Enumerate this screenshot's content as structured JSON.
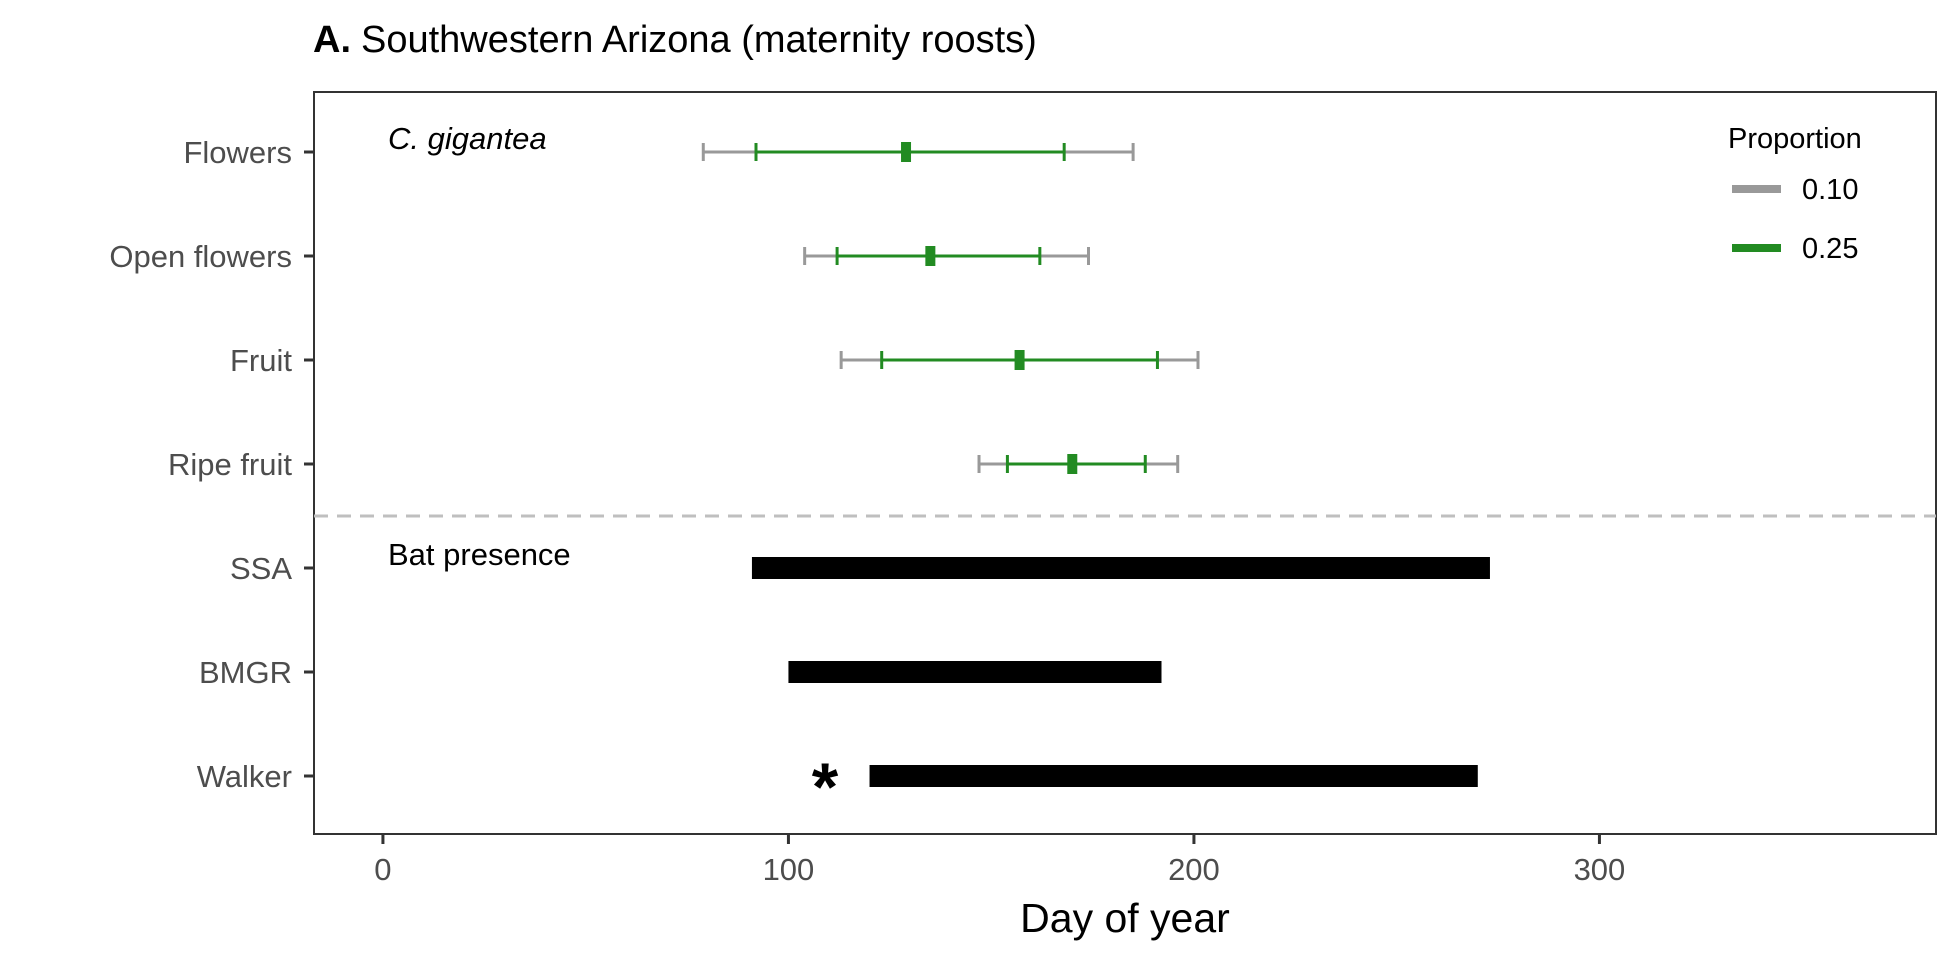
{
  "chart_data": {
    "type": "interval",
    "title_prefix": "A.",
    "title": "Southwestern Arizona (maternity roosts)",
    "xlabel": "Day of year",
    "ylabel": "",
    "xlim": [
      -17,
      383
    ],
    "xticks": [
      0,
      100,
      200,
      300
    ],
    "xtick_labels": [
      "0",
      "100",
      "200",
      "300"
    ],
    "categories": [
      "Flowers",
      "Open flowers",
      "Fruit",
      "Ripe fruit",
      "SSA",
      "BMGR",
      "Walker"
    ],
    "annotations": {
      "species": "C. gigantea",
      "bat": "Bat presence",
      "asterisk": "*"
    },
    "asterisk_row": "Walker",
    "asterisk_day": 109,
    "divider_after": "Ripe fruit",
    "legend": {
      "title": "Proportion",
      "position": "top-right",
      "entries": [
        {
          "label": "0.10",
          "color": "#999999"
        },
        {
          "label": "0.25",
          "color": "#228b22"
        }
      ]
    },
    "phenology": [
      {
        "category": "Flowers",
        "p10": [
          79,
          185
        ],
        "p25": [
          92,
          168
        ],
        "median": 129
      },
      {
        "category": "Open flowers",
        "p10": [
          104,
          174
        ],
        "p25": [
          112,
          162
        ],
        "median": 135
      },
      {
        "category": "Fruit",
        "p10": [
          113,
          201
        ],
        "p25": [
          123,
          191
        ],
        "median": 157
      },
      {
        "category": "Ripe fruit",
        "p10": [
          147,
          196
        ],
        "p25": [
          154,
          188
        ],
        "median": 170
      }
    ],
    "bat_presence": [
      {
        "category": "SSA",
        "range": [
          91,
          273
        ]
      },
      {
        "category": "BMGR",
        "range": [
          100,
          192
        ]
      },
      {
        "category": "Walker",
        "range": [
          120,
          270
        ]
      }
    ],
    "colors": {
      "p10": "#999999",
      "p25": "#228b22",
      "bat": "#000000",
      "divider": "#bfbfbf",
      "panel_border": "#333333"
    }
  }
}
